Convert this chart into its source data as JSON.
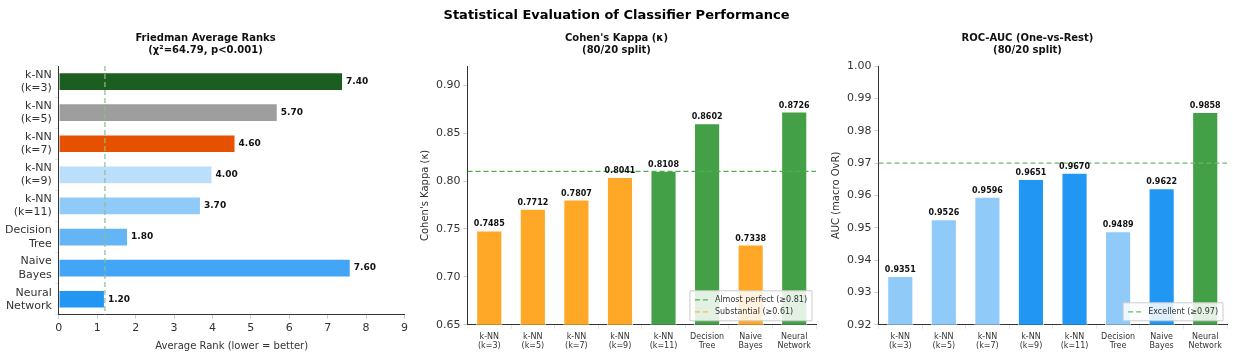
{
  "chart_data": [
    {
      "type": "bar",
      "orientation": "horizontal",
      "title": "Friedman Average Ranks\n(χ²=64.79, p<0.001)",
      "xlabel": "Average Rank (lower = better)",
      "annotations": [
        "Statistical Evaluation of Classifier Performance"
      ],
      "categories": [
        "k-NN\n(k=3)",
        "k-NN\n(k=5)",
        "k-NN\n(k=7)",
        "k-NN\n(k=9)",
        "k-NN\n(k=11)",
        "Decision\nTree",
        "Naive\nBayes",
        "Neural\nNetwork"
      ],
      "values": [
        7.4,
        5.7,
        4.6,
        4.0,
        3.7,
        1.8,
        7.6,
        1.2
      ],
      "value_labels": [
        "7.40",
        "5.70",
        "4.60",
        "4.00",
        "3.70",
        "1.80",
        "7.60",
        "1.20"
      ],
      "colors": [
        "#1b5e20",
        "#9e9e9e",
        "#e65100",
        "#bbdefb",
        "#90caf9",
        "#64b5f6",
        "#42a5f5",
        "#2196f3"
      ],
      "xlim": [
        0,
        9
      ],
      "xticks": [
        0,
        1,
        2,
        3,
        4,
        5,
        6,
        7,
        8,
        9
      ],
      "ref_lines": [
        {
          "axis": "x",
          "value": 1.2,
          "color": "#8fbc8f",
          "line_style": "dashed"
        }
      ],
      "legend": false
    },
    {
      "type": "bar",
      "title": "Cohen's Kappa (κ)\n(80/20 split)",
      "ylabel": "Cohen's Kappa (κ)",
      "categories": [
        "k-NN\n(k=3)",
        "k-NN\n(k=5)",
        "k-NN\n(k=7)",
        "k-NN\n(k=9)",
        "k-NN\n(k=11)",
        "Decision\nTree",
        "Naive\nBayes",
        "Neural\nNetwork"
      ],
      "values": [
        0.7485,
        0.7712,
        0.7807,
        0.8041,
        0.8108,
        0.8602,
        0.7338,
        0.8726
      ],
      "data_labels": true,
      "colors": [
        "#ffa726",
        "#ffa726",
        "#ffa726",
        "#ffa726",
        "#43a047",
        "#43a047",
        "#ffa726",
        "#43a047"
      ],
      "ylim": [
        0.65,
        0.92
      ],
      "yticks": [
        0.65,
        {
          "value": 0.7,
          "label": "0.70"
        },
        0.75,
        {
          "value": 0.8,
          "label": "0.80"
        },
        0.85,
        {
          "value": 0.9,
          "label": "0.90"
        }
      ],
      "ref_lines": [
        {
          "axis": "y",
          "value": 0.81,
          "label": "Almost perfect (≥0.81)",
          "color": "#4caf50",
          "line_style": "dashed"
        },
        {
          "label": "Substantial (≥0.61)",
          "color": "#ffb74d",
          "line_style": "dashed"
        }
      ],
      "legend": "bottom right"
    },
    {
      "type": "bar",
      "title": "ROC-AUC (One-vs-Rest)\n(80/20 split)",
      "ylabel": "AUC (macro OvR)",
      "categories": [
        "k-NN\n(k=3)",
        "k-NN\n(k=5)",
        "k-NN\n(k=7)",
        "k-NN\n(k=9)",
        "k-NN\n(k=11)",
        "Decision\nTree",
        "Naive\nBayes",
        "Neural\nNetwork"
      ],
      "values": [
        0.9351,
        0.9526,
        0.9596,
        0.9651,
        0.967,
        0.9489,
        0.9622,
        0.9858
      ],
      "value_labels": [
        "0.9351",
        "0.9526",
        "0.9596",
        "0.9651",
        "0.9670",
        "0.9489",
        "0.9622",
        "0.9858"
      ],
      "colors": [
        "#90caf9",
        "#90caf9",
        "#90caf9",
        "#2196f3",
        "#2196f3",
        "#90caf9",
        "#2196f3",
        "#43a047"
      ],
      "ylim": [
        0.92,
        1.0
      ],
      "yticks": [
        0.92,
        0.93,
        0.94,
        0.95,
        0.96,
        0.97,
        0.98,
        0.99,
        {
          "value": 1.0,
          "label": "1.00"
        }
      ],
      "ref_lines": [
        {
          "axis": "y",
          "value": 0.97,
          "label": "Excellent (≥0.97)",
          "color": "#66bb6a",
          "line_style": "dashed"
        }
      ],
      "legend": "bottom right"
    }
  ]
}
